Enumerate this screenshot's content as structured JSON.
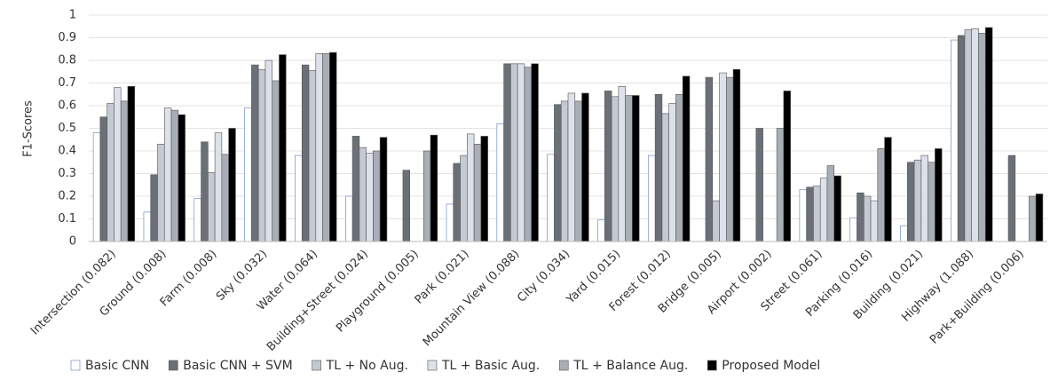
{
  "chart_data": {
    "type": "bar",
    "y_label": "F1-Scores",
    "categories": [
      "Intersection (0.082)",
      "Ground (0.008)",
      "Farm (0.008)",
      "Sky (0.032)",
      "Water (0.064)",
      "Building+Street (0.024)",
      "Playground (0.005)",
      "Park (0.021)",
      "Mountain View (0.088)",
      "City (0.034)",
      "Yard (0.015)",
      "Forest (0.012)",
      "Bridge (0.005)",
      "Airport (0.002)",
      "Street (0.061)",
      "Parking (0.016)",
      "Building (0.021)",
      "Highway (1.088)",
      "Park+Building (0.006)"
    ],
    "series": [
      {
        "name": "Basic CNN",
        "color": "#ffffff",
        "values": [
          0.48,
          0.13,
          0.19,
          0.59,
          0.38,
          0.2,
          0,
          0.165,
          0.52,
          0.385,
          0.095,
          0.38,
          0,
          0,
          0.23,
          0.105,
          0.07,
          0.89,
          0
        ]
      },
      {
        "name": "Basic CNN + SVM",
        "color": "#6b6f78",
        "values": [
          0.55,
          0.295,
          0.44,
          0.78,
          0.78,
          0.465,
          0.315,
          0.345,
          0.785,
          0.605,
          0.665,
          0.65,
          0.725,
          0.5,
          0.24,
          0.215,
          0.35,
          0.91,
          0.38
        ]
      },
      {
        "name": "TL + No Aug.",
        "color": "#c4c9d2",
        "values": [
          0.61,
          0.43,
          0.305,
          0.76,
          0.755,
          0.415,
          0,
          0.38,
          0.785,
          0.62,
          0.64,
          0.565,
          0.18,
          0,
          0.245,
          0.2,
          0.36,
          0.935,
          0
        ]
      },
      {
        "name": "TL + Basic Aug.",
        "color": "#dde1ea",
        "values": [
          0.68,
          0.59,
          0.48,
          0.8,
          0.83,
          0.39,
          0,
          0.475,
          0.785,
          0.655,
          0.685,
          0.61,
          0.745,
          0,
          0.28,
          0.18,
          0.38,
          0.94,
          0
        ]
      },
      {
        "name": "TL + Balance Aug.",
        "color": "#a9adb5",
        "values": [
          0.62,
          0.58,
          0.385,
          0.71,
          0.83,
          0.4,
          0.4,
          0.43,
          0.77,
          0.62,
          0.645,
          0.65,
          0.725,
          0.5,
          0.335,
          0.41,
          0.35,
          0.92,
          0.2
        ]
      },
      {
        "name": "Proposed Model",
        "color": "#000000",
        "values": [
          0.685,
          0.56,
          0.5,
          0.825,
          0.835,
          0.46,
          0.47,
          0.465,
          0.785,
          0.655,
          0.645,
          0.73,
          0.76,
          0.665,
          0.29,
          0.46,
          0.41,
          0.945,
          0.21
        ]
      }
    ],
    "ylim": [
      0,
      1
    ],
    "yticks": [
      0,
      0.1,
      0.2,
      0.3,
      0.4,
      0.5,
      0.6,
      0.7,
      0.8,
      0.9,
      1
    ],
    "grid": true
  }
}
